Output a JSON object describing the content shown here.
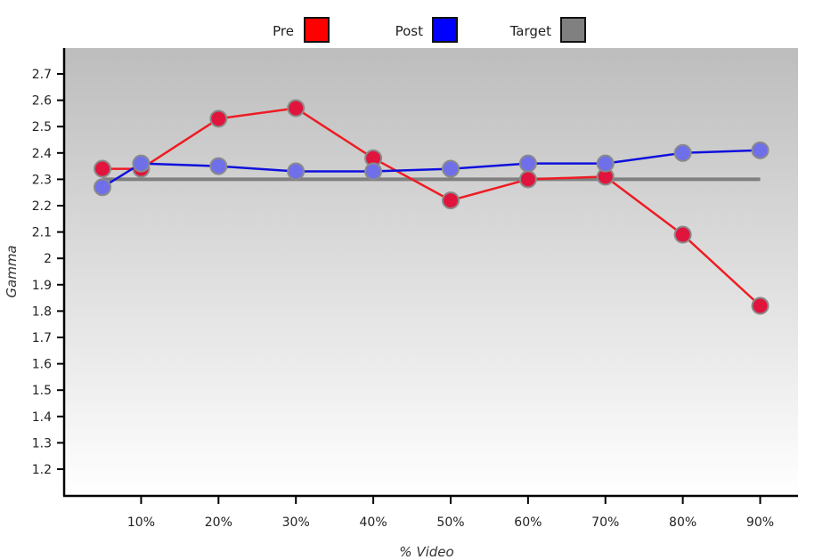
{
  "chart_data": {
    "type": "line",
    "xlabel": "% Video",
    "ylabel": "Gamma",
    "x_tick_labels": [
      "10%",
      "20%",
      "30%",
      "40%",
      "50%",
      "60%",
      "70%",
      "80%",
      "90%"
    ],
    "xlim": [
      0,
      100
    ],
    "ylim": [
      1.1,
      2.8
    ],
    "y_ticks": [
      1.2,
      1.3,
      1.4,
      1.5,
      1.6,
      1.7,
      1.8,
      1.9,
      2,
      2.1,
      2.2,
      2.3,
      2.4,
      2.5,
      2.6,
      2.7
    ],
    "grid": false,
    "legend_position": "top-center",
    "series": [
      {
        "name": "Pre",
        "color": "#ff0000",
        "line_color": "#ee1c24",
        "marker_color": "#e0143c",
        "x": [
          5,
          10,
          20,
          30,
          40,
          50,
          60,
          70,
          80,
          90
        ],
        "y": [
          2.34,
          2.34,
          2.53,
          2.57,
          2.38,
          2.22,
          2.3,
          2.31,
          2.09,
          1.82
        ]
      },
      {
        "name": "Post",
        "color": "#0000ff",
        "line_color": "#1010dd",
        "marker_color": "#6f6fea",
        "x": [
          5,
          10,
          20,
          30,
          40,
          50,
          60,
          70,
          80,
          90
        ],
        "y": [
          2.27,
          2.36,
          2.35,
          2.33,
          2.33,
          2.34,
          2.36,
          2.36,
          2.4,
          2.41
        ]
      },
      {
        "name": "Target",
        "color": "#808080",
        "line_color": "#808080",
        "x": [
          5,
          90
        ],
        "y": [
          2.3,
          2.3
        ]
      }
    ]
  }
}
